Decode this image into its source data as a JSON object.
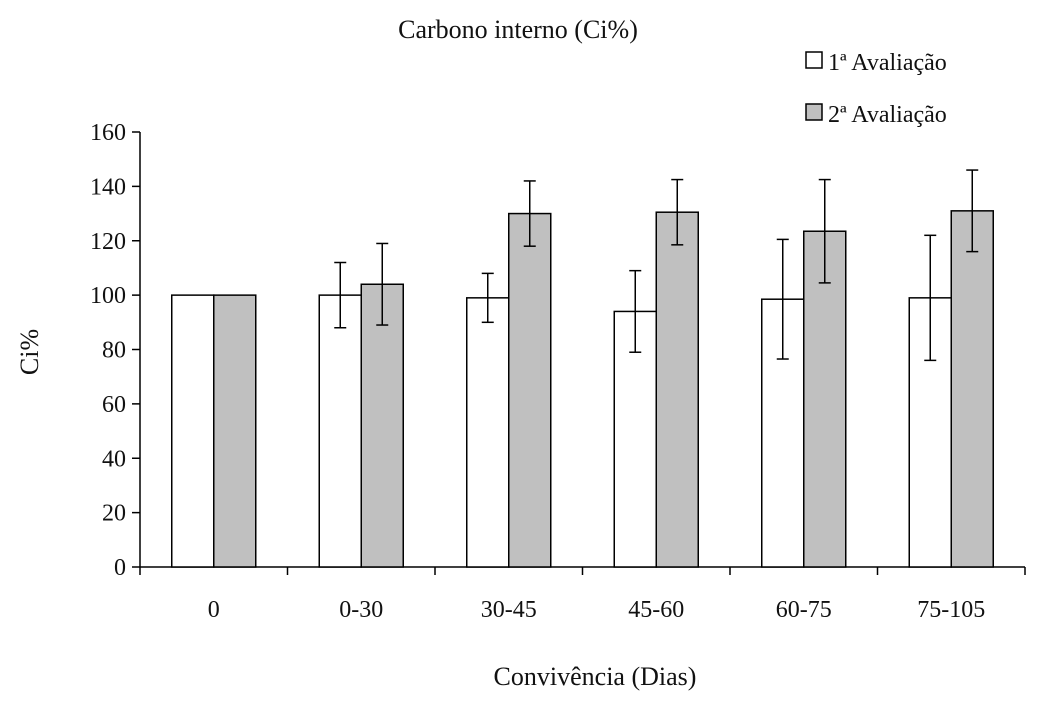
{
  "chart_data": {
    "type": "bar",
    "title": "Carbono interno (Ci%)",
    "xlabel": "Convivência (Dias)",
    "ylabel": "Ci%",
    "ylim": [
      0,
      160
    ],
    "yticks": [
      0,
      20,
      40,
      60,
      80,
      100,
      120,
      140,
      160
    ],
    "categories": [
      "0",
      "0-30",
      "30-45",
      "45-60",
      "60-75",
      "75-105"
    ],
    "series": [
      {
        "name": "1ª Avaliação",
        "color": "#ffffff",
        "values": [
          100,
          100,
          99,
          94,
          98.5,
          99
        ],
        "errors": [
          0,
          12,
          9,
          15,
          22,
          23
        ]
      },
      {
        "name": "2ª Avaliação",
        "color": "#c0c0c0",
        "values": [
          100,
          104,
          130,
          130.5,
          123.5,
          131
        ],
        "errors": [
          0,
          15,
          12,
          12,
          19,
          15
        ]
      }
    ],
    "legend_position": "top-right",
    "grid": false
  }
}
